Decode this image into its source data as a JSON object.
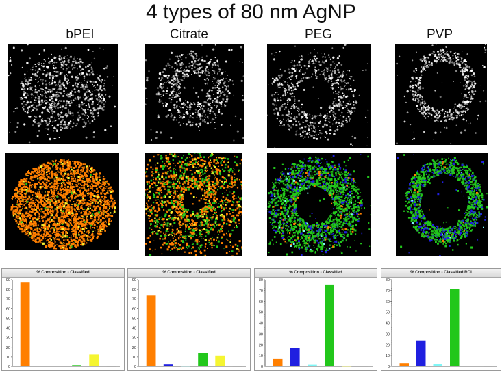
{
  "title": "4 types of 80 nm AgNP",
  "colors": {
    "orange": "#ff7f00",
    "blue": "#1f1fe0",
    "cyan": "#7ff7f7",
    "green": "#22c71b",
    "yellow": "#f5f531",
    "gray": "#555555"
  },
  "panels": [
    {
      "label": "bPEI",
      "pattern": "blob-diffuse",
      "map": "orange-blob"
    },
    {
      "label": "Citrate",
      "pattern": "ring",
      "map": "orange-green-ring"
    },
    {
      "label": "PEG",
      "pattern": "ring-arc",
      "map": "green-ring"
    },
    {
      "label": "PVP",
      "pattern": "thin-ring",
      "map": "green-thin-ring"
    }
  ],
  "chart_data": [
    {
      "type": "bar",
      "title": "% Composition - Classified",
      "ylim": [
        0,
        90
      ],
      "yticks": [
        0,
        10,
        20,
        30,
        40,
        50,
        60,
        70,
        80,
        90
      ],
      "values": [
        87,
        0.4,
        0.4,
        1.2,
        12.5,
        0.3
      ],
      "colors": [
        "#ff7f00",
        "#1f1fe0",
        "#7ff7f7",
        "#22c71b",
        "#f5f531",
        "#555555"
      ],
      "grid": false
    },
    {
      "type": "bar",
      "title": "% Composition - Classified",
      "ylim": [
        0,
        90
      ],
      "yticks": [
        0,
        10,
        20,
        30,
        40,
        50,
        60,
        70,
        80,
        90
      ],
      "values": [
        73.5,
        2,
        0.3,
        13.5,
        11.5,
        0.3
      ],
      "colors": [
        "#ff7f00",
        "#1f1fe0",
        "#7ff7f7",
        "#22c71b",
        "#f5f531",
        "#555555"
      ],
      "grid": false
    },
    {
      "type": "bar",
      "title": "% Composition - Classified",
      "ylim": [
        0,
        80
      ],
      "yticks": [
        0,
        10,
        20,
        30,
        40,
        50,
        60,
        70,
        80
      ],
      "values": [
        7,
        17,
        1.5,
        75,
        0.2,
        0.3
      ],
      "colors": [
        "#ff7f00",
        "#1f1fe0",
        "#7ff7f7",
        "#22c71b",
        "#f5f531",
        "#555555"
      ],
      "grid": false
    },
    {
      "type": "bar",
      "title": "% Composition - Classified ROI",
      "ylim": [
        0,
        80
      ],
      "yticks": [
        0,
        10,
        20,
        30,
        40,
        50,
        60,
        70,
        80
      ],
      "values": [
        3,
        23.5,
        2.5,
        71.5,
        0.5,
        0.3
      ],
      "colors": [
        "#ff7f00",
        "#1f1fe0",
        "#7ff7f7",
        "#22c71b",
        "#f5f531",
        "#555555"
      ],
      "grid": false
    }
  ]
}
